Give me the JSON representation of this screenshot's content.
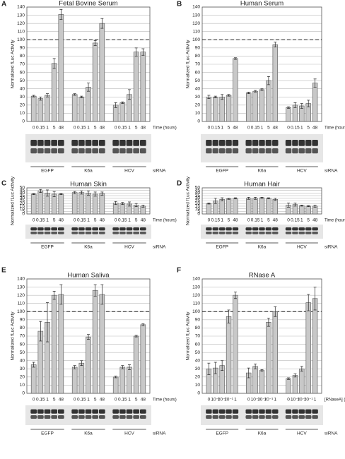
{
  "chart_data": [
    {
      "type": "bar",
      "panel": "A",
      "title": "Fetal Bovine Serum",
      "y_label": "Normalized fLuc Activity",
      "x_label": "Time (hours)",
      "group_label": "siRNA",
      "categories": [
        "0",
        "0.15",
        "1",
        "5",
        "48"
      ],
      "ylim": [
        0,
        140
      ],
      "yticks": [
        0,
        10,
        20,
        30,
        40,
        50,
        60,
        70,
        80,
        90,
        100,
        110,
        120,
        130,
        140
      ],
      "grid": true,
      "reference_line": 100,
      "color": "#c8c8c8",
      "groups": [
        {
          "name": "EGFP",
          "values": [
            31,
            28,
            32,
            71,
            131
          ],
          "errors": [
            1,
            2,
            2,
            6,
            6
          ]
        },
        {
          "name": "K6a",
          "values": [
            33,
            30,
            42,
            96,
            120
          ],
          "errors": [
            1,
            1,
            5,
            3,
            6
          ]
        },
        {
          "name": "HCV",
          "values": [
            20,
            23,
            33,
            85,
            85
          ],
          "errors": [
            3,
            1,
            6,
            5,
            4
          ]
        }
      ]
    },
    {
      "type": "bar",
      "panel": "B",
      "title": "Human Serum",
      "y_label": "Normalized fLuc Activity",
      "x_label": "Time (hours)",
      "group_label": "siRNA",
      "categories": [
        "0",
        "0.15",
        "1",
        "5",
        "48"
      ],
      "ylim": [
        0,
        140
      ],
      "yticks": [
        0,
        10,
        20,
        30,
        40,
        50,
        60,
        70,
        80,
        90,
        100,
        110,
        120,
        130,
        140
      ],
      "grid": true,
      "reference_line": 100,
      "color": "#c8c8c8",
      "groups": [
        {
          "name": "EGFP",
          "values": [
            30,
            30,
            30,
            32,
            77
          ],
          "errors": [
            2,
            1,
            3,
            1,
            1
          ]
        },
        {
          "name": "K6a",
          "values": [
            35,
            37,
            39,
            50,
            94
          ],
          "errors": [
            1,
            1,
            1,
            5,
            3
          ]
        },
        {
          "name": "HCV",
          "values": [
            17,
            20,
            19,
            22,
            47
          ],
          "errors": [
            1,
            3,
            3,
            4,
            5
          ]
        }
      ]
    },
    {
      "type": "bar",
      "panel": "C",
      "title": "Human Skin",
      "y_label": "Normalized fLuc Activity",
      "x_label": "Time (hours)",
      "group_label": "siRNA",
      "categories": [
        "0",
        "0.15",
        "1",
        "5",
        "48"
      ],
      "ylim": [
        0,
        50
      ],
      "yticks": [
        0,
        5,
        10,
        15,
        20,
        25,
        30,
        35,
        40,
        45,
        50
      ],
      "grid": true,
      "color": "#c8c8c8",
      "groups": [
        {
          "name": "EGFP",
          "values": [
            38,
            44,
            40,
            38,
            38
          ],
          "errors": [
            1,
            3,
            6,
            5,
            1
          ]
        },
        {
          "name": "K6a",
          "values": [
            41,
            41,
            40,
            38,
            39
          ],
          "errors": [
            2,
            3,
            4,
            4,
            3
          ]
        },
        {
          "name": "HCV",
          "values": [
            21,
            20,
            19,
            17,
            15
          ],
          "errors": [
            3,
            2,
            4,
            3,
            2
          ]
        }
      ]
    },
    {
      "type": "bar",
      "panel": "D",
      "title": "Human Hair",
      "y_label": "Normalized fLuc Activity",
      "x_label": "Time (hours)",
      "group_label": "siRNA",
      "categories": [
        "0",
        "0.15",
        "1",
        "5",
        "48"
      ],
      "ylim": [
        0,
        50
      ],
      "yticks": [
        0,
        5,
        10,
        15,
        20,
        25,
        30,
        35,
        40,
        45,
        50
      ],
      "grid": true,
      "color": "#c8c8c8",
      "groups": [
        {
          "name": "EGFP",
          "values": [
            20,
            25,
            28,
            29,
            30
          ],
          "errors": [
            1,
            5,
            3,
            1,
            1
          ]
        },
        {
          "name": "K6a",
          "values": [
            30,
            30,
            31,
            30,
            28
          ],
          "errors": [
            2,
            2,
            1,
            1,
            2
          ]
        },
        {
          "name": "HCV",
          "values": [
            17,
            18,
            16,
            15,
            15
          ],
          "errors": [
            4,
            3,
            1,
            1,
            2
          ]
        }
      ]
    },
    {
      "type": "bar",
      "panel": "E",
      "title": "Human Saliva",
      "y_label": "Normalized fLuc Activity",
      "x_label": "Time (hours)",
      "group_label": "siRNA",
      "categories": [
        "0",
        "0.15",
        "1",
        "5",
        "48"
      ],
      "ylim": [
        0,
        140
      ],
      "yticks": [
        0,
        10,
        20,
        30,
        40,
        50,
        60,
        70,
        80,
        90,
        100,
        110,
        120,
        130,
        140
      ],
      "grid": true,
      "reference_line": 100,
      "color": "#c8c8c8",
      "groups": [
        {
          "name": "EGFP",
          "values": [
            35,
            76,
            87,
            120,
            121
          ],
          "errors": [
            3,
            12,
            24,
            5,
            12
          ]
        },
        {
          "name": "K6a",
          "values": [
            32,
            37,
            69,
            126,
            121
          ],
          "errors": [
            2,
            3,
            3,
            7,
            12
          ]
        },
        {
          "name": "HCV",
          "values": [
            20,
            32,
            32,
            70,
            84
          ],
          "errors": [
            1,
            2,
            3,
            1,
            1
          ]
        }
      ]
    },
    {
      "type": "bar",
      "panel": "F",
      "title": "RNase A",
      "y_label": "Normalized fLuc Activity",
      "x_label": "[RNaseA] (mg/mL)",
      "group_label": "siRNA",
      "categories": [
        "0",
        "10⁻³",
        "10⁻²",
        "10⁻¹",
        "1"
      ],
      "ylim": [
        0,
        140
      ],
      "yticks": [
        0,
        10,
        20,
        30,
        40,
        50,
        60,
        70,
        80,
        90,
        100,
        110,
        120,
        130,
        140
      ],
      "grid": true,
      "reference_line": 100,
      "color": "#c8c8c8",
      "groups": [
        {
          "name": "EGFP",
          "values": [
            30,
            31,
            34,
            94,
            120
          ],
          "errors": [
            7,
            7,
            6,
            8,
            4
          ]
        },
        {
          "name": "K6a",
          "values": [
            25,
            33,
            28,
            87,
            100
          ],
          "errors": [
            6,
            3,
            1,
            5,
            6
          ]
        },
        {
          "name": "HCV",
          "values": [
            18,
            22,
            30,
            111,
            116
          ],
          "errors": [
            1,
            2,
            3,
            10,
            14
          ]
        }
      ]
    }
  ]
}
